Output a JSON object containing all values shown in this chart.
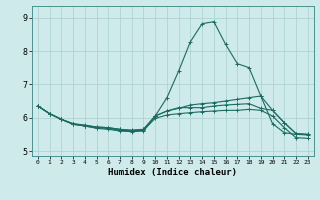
{
  "title": "",
  "xlabel": "Humidex (Indice chaleur)",
  "ylabel": "",
  "bg_color": "#ceeaea",
  "line_color": "#1a6b60",
  "grid_color": "#aed4d4",
  "xlim": [
    -0.5,
    23.5
  ],
  "ylim": [
    4.85,
    9.35
  ],
  "xticks": [
    0,
    1,
    2,
    3,
    4,
    5,
    6,
    7,
    8,
    9,
    10,
    11,
    12,
    13,
    14,
    15,
    16,
    17,
    18,
    19,
    20,
    21,
    22,
    23
  ],
  "yticks": [
    5,
    6,
    7,
    8,
    9
  ],
  "series": [
    [
      6.35,
      6.12,
      5.95,
      5.82,
      5.75,
      5.68,
      5.65,
      5.6,
      5.58,
      5.6,
      6.05,
      6.2,
      6.3,
      6.3,
      6.3,
      6.35,
      6.38,
      6.4,
      6.42,
      6.28,
      6.22,
      5.85,
      5.52,
      5.5
    ],
    [
      6.35,
      6.12,
      5.95,
      5.82,
      5.78,
      5.72,
      5.7,
      5.65,
      5.63,
      5.65,
      6.05,
      6.6,
      7.4,
      8.28,
      8.82,
      8.88,
      8.2,
      7.62,
      7.5,
      6.65,
      5.82,
      5.55,
      5.5,
      5.48
    ],
    [
      6.35,
      6.12,
      5.95,
      5.8,
      5.75,
      5.7,
      5.68,
      5.62,
      5.6,
      5.65,
      6.05,
      6.2,
      6.28,
      6.38,
      6.42,
      6.45,
      6.5,
      6.55,
      6.6,
      6.65,
      6.22,
      5.85,
      5.52,
      5.5
    ],
    [
      6.35,
      6.12,
      5.95,
      5.8,
      5.76,
      5.72,
      5.7,
      5.65,
      5.6,
      5.62,
      5.98,
      6.08,
      6.12,
      6.15,
      6.18,
      6.2,
      6.22,
      6.22,
      6.25,
      6.22,
      6.05,
      5.7,
      5.4,
      5.38
    ]
  ]
}
